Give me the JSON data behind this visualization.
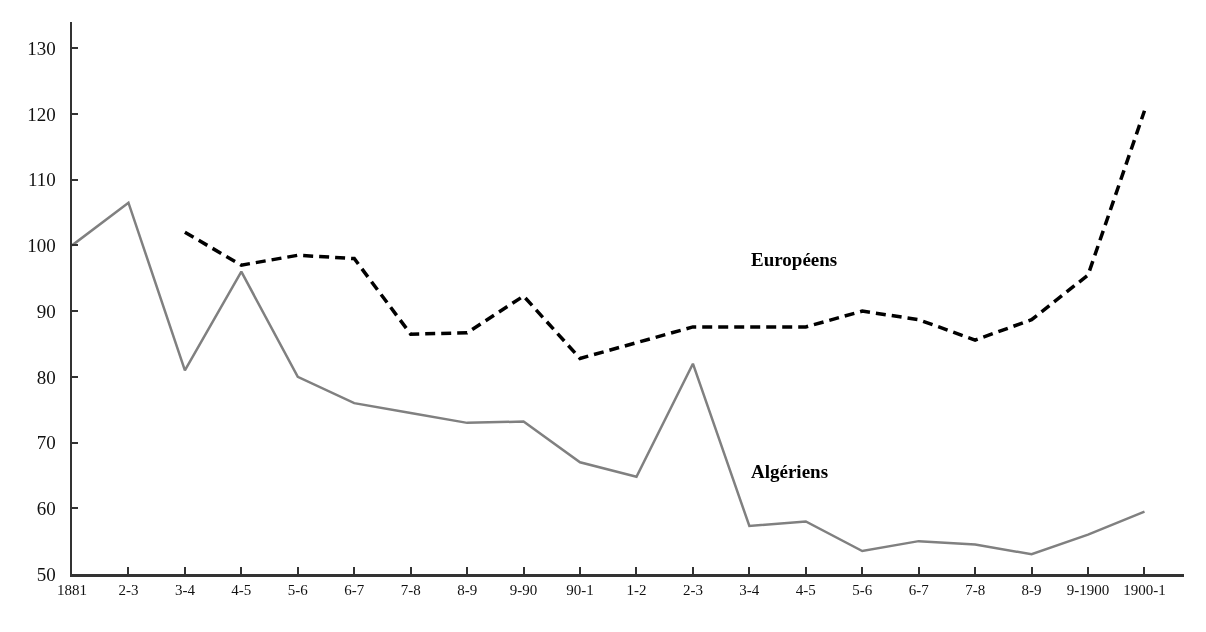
{
  "chart_data": {
    "type": "line",
    "categories": [
      "1881",
      "2-3",
      "3-4",
      "4-5",
      "5-6",
      "6-7",
      "7-8",
      "8-9",
      "9-90",
      "90-1",
      "1-2",
      "2-3",
      "3-4",
      "4-5",
      "5-6",
      "6-7",
      "7-8",
      "8-9",
      "9-1900",
      "1900-1"
    ],
    "series": [
      {
        "name": "Algériens",
        "color": "#808080",
        "line_style": "solid",
        "values": [
          100,
          106.5,
          81,
          96,
          80,
          76,
          74.5,
          73,
          73.2,
          67,
          64.8,
          82,
          57.3,
          58,
          53.5,
          55,
          54.5,
          53,
          56,
          59.5
        ]
      },
      {
        "name": "Européens",
        "color": "#000000",
        "line_style": "dashed",
        "values": [
          null,
          null,
          102,
          97,
          98.5,
          98,
          86.5,
          86.7,
          92.3,
          82.8,
          85.2,
          87.6,
          87.6,
          87.6,
          90,
          88.7,
          85.6,
          88.7,
          95.5,
          120.5
        ]
      }
    ],
    "ylim": [
      50,
      134
    ],
    "yticks": [
      50,
      60,
      70,
      80,
      90,
      100,
      110,
      120,
      130
    ],
    "grid": false,
    "legend": false,
    "marker": "none"
  }
}
